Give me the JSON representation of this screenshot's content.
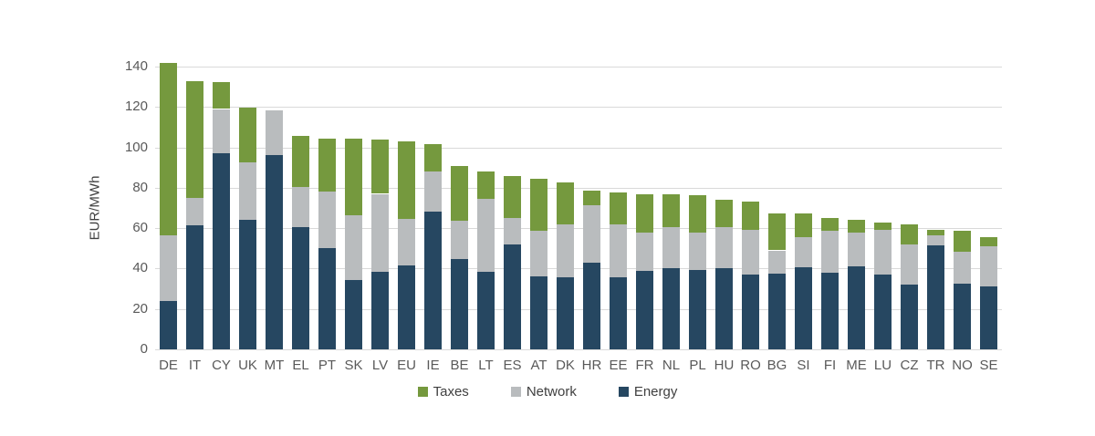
{
  "y_axis": {
    "title": "EUR/MWh",
    "ticks": [
      0,
      20,
      40,
      60,
      80,
      100,
      120,
      140
    ]
  },
  "legend": {
    "items": [
      {
        "label": "Taxes",
        "color": "#75993e"
      },
      {
        "label": "Network",
        "color": "#b9bcbe"
      },
      {
        "label": "Energy",
        "color": "#264761"
      }
    ]
  },
  "colors": {
    "taxes": "#75993e",
    "network": "#b9bcbe",
    "energy": "#264761",
    "gridline": "#d9d9d9",
    "tick_text": "#595959"
  },
  "chart_data": {
    "type": "bar",
    "stacked": true,
    "title": "",
    "xlabel": "",
    "ylabel": "EUR/MWh",
    "ylim": [
      0,
      140
    ],
    "ytick_step": 20,
    "grid": true,
    "legend_position": "bottom",
    "categories": [
      "DE",
      "IT",
      "CY",
      "UK",
      "MT",
      "EL",
      "PT",
      "SK",
      "LV",
      "EU",
      "IE",
      "BE",
      "LT",
      "ES",
      "AT",
      "DK",
      "HR",
      "EE",
      "FR",
      "NL",
      "PL",
      "HU",
      "RO",
      "BG",
      "SI",
      "FI",
      "ME",
      "LU",
      "CZ",
      "TR",
      "NO",
      "SE"
    ],
    "series": [
      {
        "name": "Energy",
        "color": "#264761",
        "values": [
          24,
          61.5,
          97,
          64,
          96,
          60.5,
          50,
          34.5,
          38.5,
          41.5,
          68,
          44.5,
          38.5,
          52,
          36,
          35.5,
          43,
          35.5,
          39,
          40,
          39.5,
          40,
          37,
          37.5,
          40.5,
          38,
          41,
          37,
          32,
          51.5,
          32.5,
          31
        ]
      },
      {
        "name": "Network",
        "color": "#b9bcbe",
        "values": [
          32.5,
          13.5,
          22,
          28.5,
          22.5,
          20,
          28,
          32,
          38.5,
          23,
          20,
          19,
          36,
          13,
          22.5,
          26.5,
          28.5,
          26.5,
          19,
          20.5,
          18.5,
          20.5,
          22,
          11.5,
          15,
          20.5,
          17,
          22,
          20,
          5,
          16,
          20
        ]
      },
      {
        "name": "Taxes",
        "color": "#75993e",
        "values": [
          85.5,
          58,
          13.5,
          27,
          0,
          25,
          26.5,
          38,
          27,
          38.5,
          13.5,
          27.5,
          13.5,
          21,
          26,
          20.5,
          7,
          15.5,
          19,
          16.5,
          18.5,
          13.5,
          14,
          18.5,
          12,
          6.5,
          6,
          4,
          10,
          2.5,
          10,
          4.5
        ]
      }
    ],
    "series_totals": [
      142,
      133,
      132.5,
      119.5,
      118.5,
      105.5,
      104.5,
      104.5,
      104,
      103,
      101.5,
      91,
      88,
      86,
      84.5,
      82.5,
      78.5,
      77.5,
      77,
      77,
      76.5,
      74,
      73,
      67.5,
      67.5,
      65,
      64,
      63,
      62,
      59,
      58.5,
      55.5
    ]
  }
}
